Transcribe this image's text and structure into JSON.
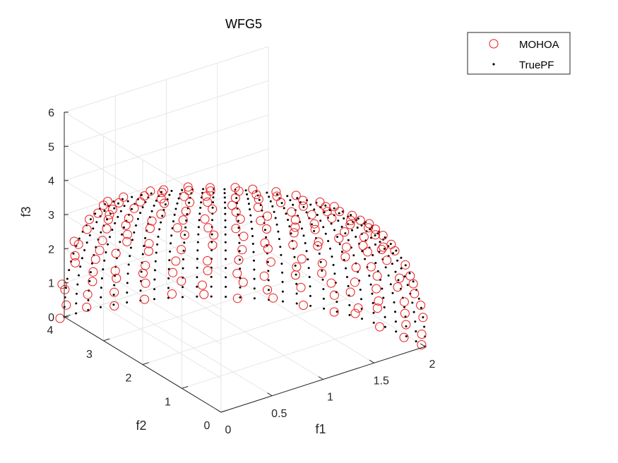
{
  "chart_data": {
    "type": "scatter3d",
    "title": "WFG5",
    "xlabel": "f1",
    "ylabel": "f2",
    "zlabel": "f3",
    "xlim": [
      0,
      2
    ],
    "ylim": [
      0,
      4
    ],
    "zlim": [
      0,
      6
    ],
    "xticks": [
      "0",
      "0.5",
      "1",
      "1.5",
      "2"
    ],
    "yticks": [
      "0",
      "1",
      "2",
      "3",
      "4"
    ],
    "zticks": [
      "0",
      "1",
      "2",
      "3",
      "4",
      "5",
      "6"
    ],
    "grid": true,
    "legend_position": "top-right",
    "colors": {
      "mohoa": "#e8191b",
      "truepf": "#000000",
      "grid": "#e6e6e6",
      "axis": "#262626"
    },
    "surface": "concave ellipsoid front: (f1/2)^2 + (f2/4)^2 + (f3/6)^2 = 1 (points shown for f3 <= 4.2)",
    "series": [
      {
        "name": "MOHOA",
        "marker": "open-circle",
        "count": 150
      },
      {
        "name": "TruePF",
        "marker": "dot",
        "count": 700
      }
    ]
  }
}
